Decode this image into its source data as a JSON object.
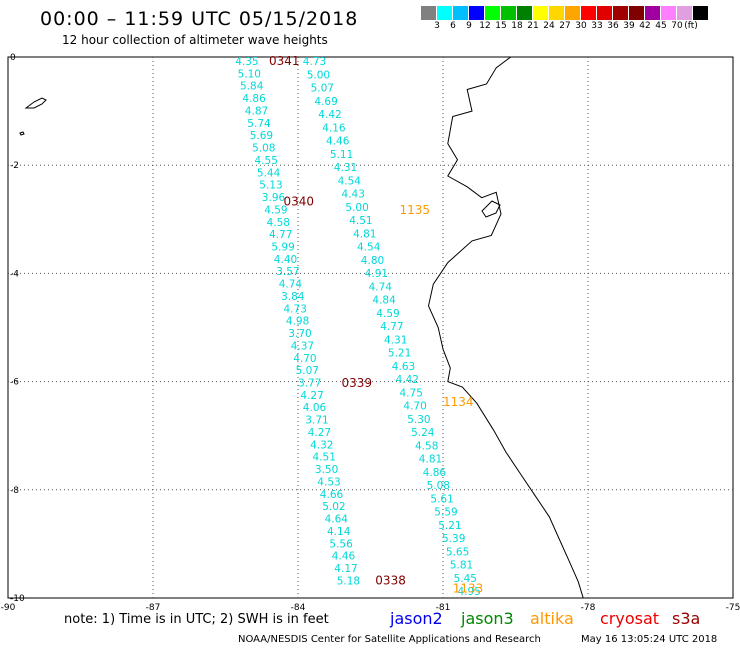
{
  "header": {
    "title": "00:00  – 11:59 UTC 05/15/2018",
    "subtitle": "12 hour collection of altimeter wave heights"
  },
  "color_scale": {
    "unit_label": "(ft)",
    "colors": [
      "#808080",
      "#00ffff",
      "#00bfff",
      "#0000ff",
      "#00ff00",
      "#00c000",
      "#008000",
      "#ffff00",
      "#ffd700",
      "#ffa500",
      "#ff0000",
      "#e00000",
      "#a00000",
      "#800000",
      "#a000a0",
      "#ff80ff",
      "#e0a0e0",
      "#000000"
    ],
    "labels": [
      "3",
      "6",
      "9",
      "12",
      "15",
      "18",
      "21",
      "24",
      "27",
      "30",
      "33",
      "36",
      "39",
      "42",
      "45",
      "70"
    ]
  },
  "map": {
    "lon_range": [
      -90,
      -75
    ],
    "lat_range": [
      -10,
      0
    ],
    "x_ticks": [
      "-90",
      "-87",
      "-84",
      "-81",
      "-78",
      "-75"
    ],
    "y_ticks": [
      "0",
      "-2",
      "-4",
      "-6",
      "-8",
      "-10"
    ],
    "coast_color": "#000000",
    "grid_color": "#555555"
  },
  "tracks": [
    {
      "satellite": "cryosat",
      "color": "#00d8d8",
      "values": [
        "4.35",
        "5.10",
        "5.84",
        "4.86",
        "4.87",
        "5.74",
        "5.69",
        "5.08",
        "4.55",
        "5.44",
        "5.13",
        "3.96",
        "4.59",
        "4.58",
        "4.77",
        "5.99",
        "4.40",
        "3.57",
        "4.74",
        "3.84",
        "4.73",
        "4.98",
        "3.70",
        "4.37",
        "4.70",
        "5.07",
        "3.77",
        "4.27",
        "4.06",
        "3.71",
        "4.27",
        "4.32",
        "4.51",
        "3.50",
        "4.53",
        "4.66",
        "5.02",
        "4.64",
        "4.14",
        "5.56",
        "4.46",
        "4.17",
        "5.18"
      ]
    },
    {
      "satellite": "cryosat",
      "color": "#00d8d8",
      "values": [
        "4.73",
        "5.00",
        "5.07",
        "4.69",
        "4.42",
        "4.16",
        "4.46",
        "5.11",
        "4.31",
        "4.54",
        "4.43",
        "5.00",
        "4.51",
        "4.81",
        "4.54",
        "4.80",
        "4.91",
        "4.74",
        "4.84",
        "4.59",
        "4.77",
        "4.31",
        "5.21",
        "4.63",
        "4.42",
        "4.75",
        "4.70",
        "5.30",
        "5.24",
        "4.58",
        "4.81",
        "4.86",
        "5.08",
        "5.61",
        "5.59",
        "5.21",
        "5.39",
        "5.65",
        "5.81",
        "5.45",
        "4.95"
      ]
    }
  ],
  "time_labels": [
    {
      "text": "0341",
      "color": "#800000"
    },
    {
      "text": "0340",
      "color": "#800000"
    },
    {
      "text": "0339",
      "color": "#800000"
    },
    {
      "text": "0338",
      "color": "#800000"
    },
    {
      "text": "1135",
      "color": "#ff9900"
    },
    {
      "text": "1134",
      "color": "#ff9900"
    },
    {
      "text": "1133",
      "color": "#ff9900"
    }
  ],
  "footer": {
    "note": "note:  1) Time is in UTC;  2) SWH is in feet",
    "legend": [
      {
        "name": "jason2",
        "color": "#0000ee"
      },
      {
        "name": "jason3",
        "color": "#008800"
      },
      {
        "name": "altika",
        "color": "#ff9900"
      },
      {
        "name": "cryosat",
        "color": "#ee0000"
      },
      {
        "name": "s3a",
        "color": "#990000"
      }
    ],
    "credit": "NOAA/NESDIS Center for Satellite Applications and Research",
    "timestamp": "May 16 13:05:24 UTC 2018"
  }
}
